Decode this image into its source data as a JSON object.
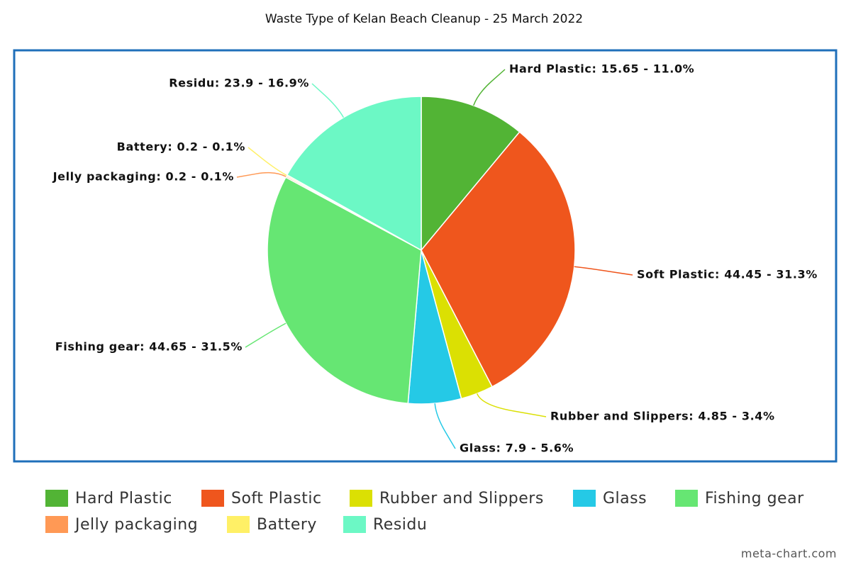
{
  "chart_data": {
    "type": "pie",
    "title": "Waste Type of Kelan Beach Cleanup - 25 March 2022",
    "categories": [
      "Hard Plastic",
      "Soft Plastic",
      "Rubber and Slippers",
      "Glass",
      "Fishing gear",
      "Jelly packaging",
      "Battery",
      "Residu"
    ],
    "values": [
      15.65,
      44.45,
      4.85,
      7.9,
      44.65,
      0.2,
      0.2,
      23.9
    ],
    "value_labels": [
      "Hard Plastic: 15.65 - 11.0%",
      "Soft Plastic: 44.45 - 31.3%",
      "Rubber and Slippers: 4.85 - 3.4%",
      "Glass: 7.9 - 5.6%",
      "Fishing gear: 44.65 - 31.5%",
      "Jelly packaging: 0.2 - 0.1%",
      "Battery: 0.2 - 0.1%",
      "Residu: 23.9 - 16.9%"
    ],
    "colors": [
      "#52b435",
      "#ef561d",
      "#dbe003",
      "#25c9e6",
      "#66e673",
      "#ff9955",
      "#fff066",
      "#6cf8c5"
    ],
    "credit": "meta-chart.com"
  }
}
